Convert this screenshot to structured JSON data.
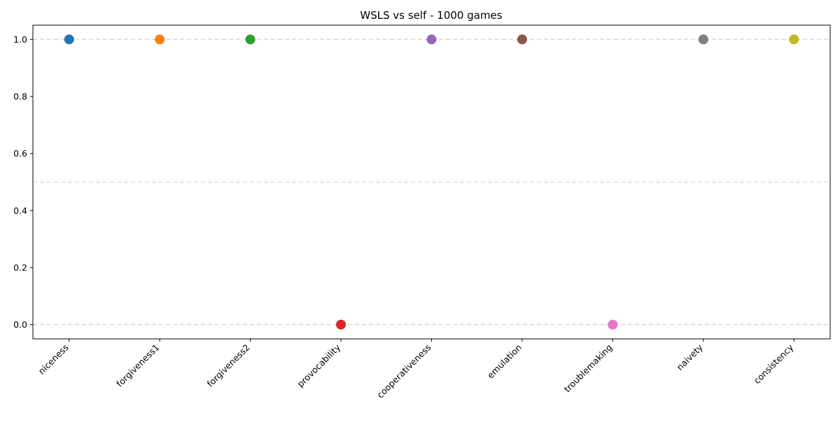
{
  "chart_data": {
    "type": "scatter",
    "title": "WSLS vs self - 1000 games",
    "xlabel": "",
    "ylabel": "",
    "categories": [
      "niceness",
      "forgiveness1",
      "forgiveness2",
      "provocability",
      "cooperativeness",
      "emulation",
      "troublemaking",
      "naivety",
      "consistency"
    ],
    "values": [
      1.0,
      1.0,
      1.0,
      0.0,
      1.0,
      1.0,
      0.0,
      1.0,
      1.0
    ],
    "colors": [
      "#1f77b4",
      "#ff7f0e",
      "#2ca02c",
      "#d62728",
      "#9467bd",
      "#8c564b",
      "#e377c2",
      "#7f7f7f",
      "#bcbd22"
    ],
    "yticks": [
      "0.0",
      "0.2",
      "0.4",
      "0.6",
      "0.8",
      "1.0"
    ],
    "ylim": [
      -0.05,
      1.05
    ],
    "reference_lines": [
      0.0,
      0.5,
      1.0
    ],
    "grid": false,
    "legend": false
  }
}
